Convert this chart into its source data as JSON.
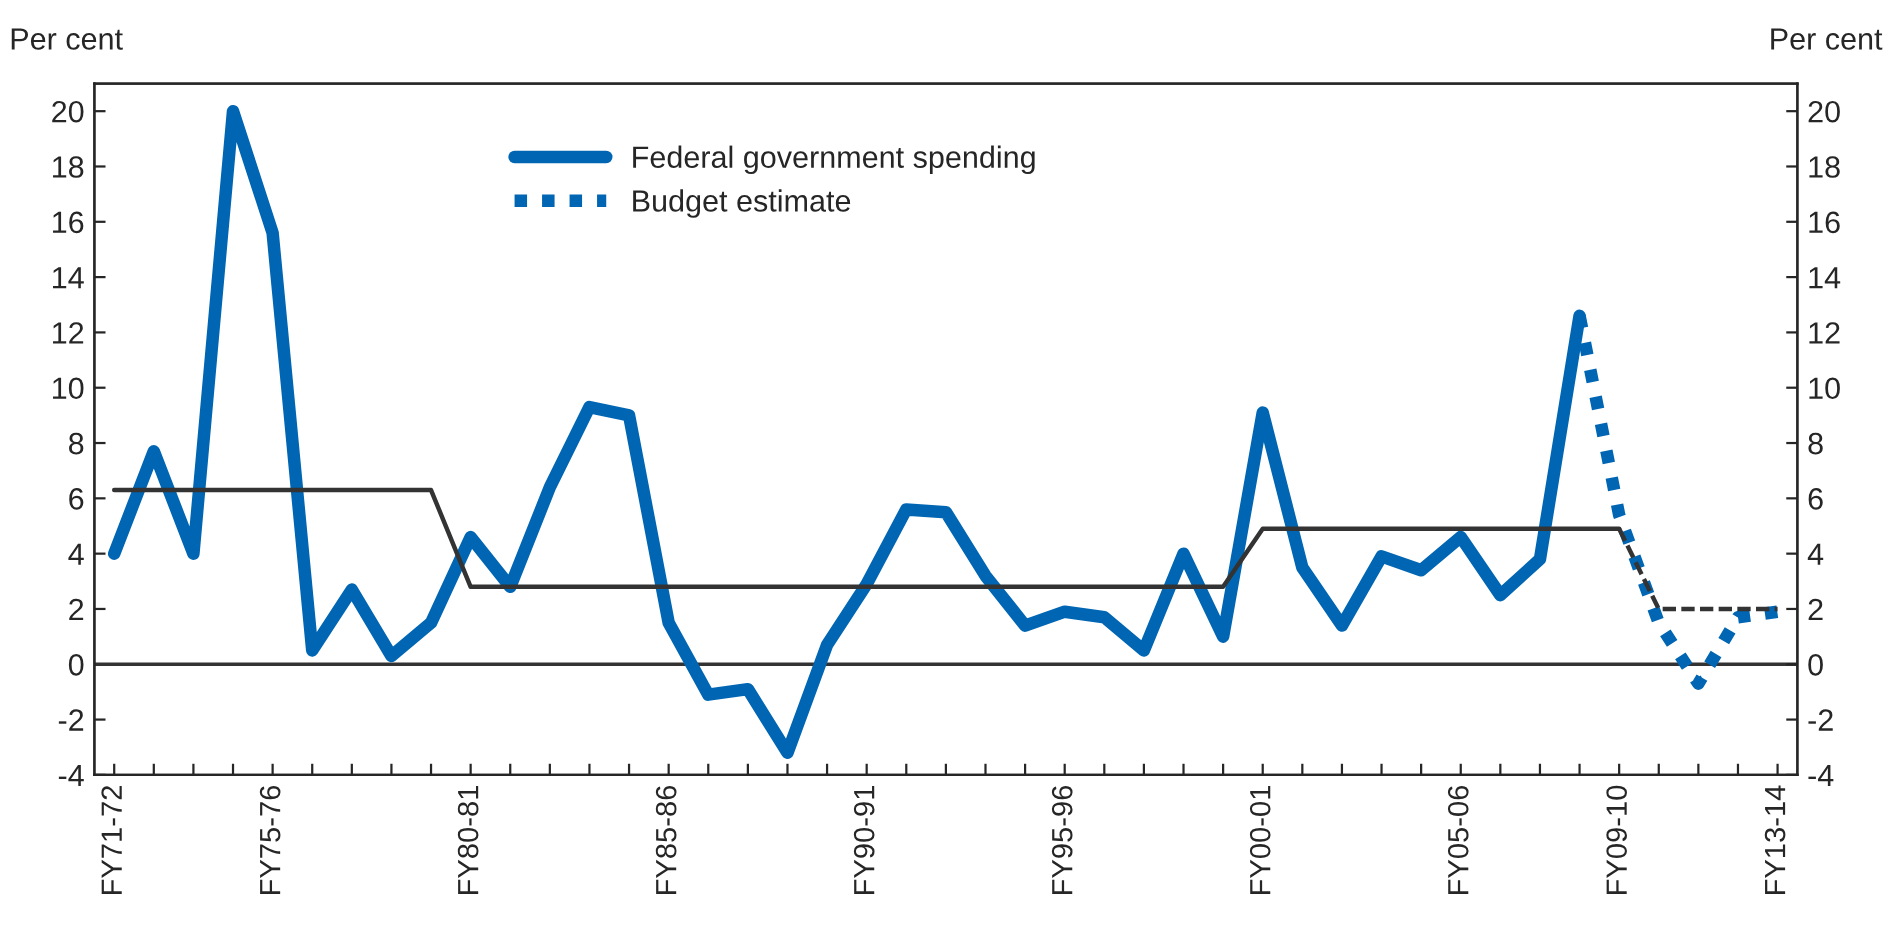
{
  "chart_data": {
    "type": "line",
    "ylabel": "Per cent",
    "y2label": "Per cent",
    "categories": [
      "FY71-72",
      null,
      null,
      null,
      "FY75-76",
      null,
      null,
      null,
      null,
      "FY80-81",
      null,
      null,
      null,
      null,
      "FY85-86",
      null,
      null,
      null,
      null,
      "FY90-91",
      null,
      null,
      null,
      null,
      "FY95-96",
      null,
      null,
      null,
      null,
      "FY00-01",
      null,
      null,
      null,
      null,
      "FY05-06",
      null,
      null,
      null,
      "FY09-10",
      null,
      null,
      null,
      "FY13-14"
    ],
    "series": [
      {
        "name": "Federal government spending",
        "color": "#0066b3",
        "line_style": "solid",
        "values": [
          4.0,
          7.7,
          4.0,
          20.0,
          15.6,
          0.5,
          2.7,
          0.3,
          1.5,
          4.6,
          2.8,
          6.4,
          9.3,
          9.0,
          1.5,
          -1.1,
          -0.9,
          -3.2,
          0.7,
          2.9,
          5.6,
          5.5,
          3.2,
          1.4,
          1.9,
          1.7,
          0.5,
          4.0,
          1.0,
          9.1,
          3.5,
          1.4,
          3.9,
          3.4,
          4.6,
          2.5,
          3.8,
          12.6,
          null,
          null,
          null,
          null,
          null
        ]
      },
      {
        "name": "Budget estimate",
        "color": "#0066b3",
        "line_style": "dotted",
        "values": [
          null,
          null,
          null,
          null,
          null,
          null,
          null,
          null,
          null,
          null,
          null,
          null,
          null,
          null,
          null,
          null,
          null,
          null,
          null,
          null,
          null,
          null,
          null,
          null,
          null,
          null,
          null,
          null,
          null,
          null,
          null,
          null,
          null,
          null,
          null,
          null,
          null,
          12.6,
          5.4,
          1.5,
          -0.7,
          1.7,
          1.9
        ]
      },
      {
        "color": "#333333",
        "line_style": "solid",
        "values": [
          6.3,
          6.3,
          6.3,
          6.3,
          6.3,
          6.3,
          6.3,
          6.3,
          6.3,
          2.8,
          2.8,
          2.8,
          2.8,
          2.8,
          2.8,
          2.8,
          2.8,
          2.8,
          2.8,
          2.8,
          2.8,
          2.8,
          2.8,
          2.8,
          2.8,
          2.8,
          2.8,
          2.8,
          2.8,
          4.9,
          4.9,
          4.9,
          4.9,
          4.9,
          4.9,
          4.9,
          4.9,
          4.9,
          4.9,
          null,
          null,
          null,
          null
        ]
      },
      {
        "color": "#333333",
        "line_style": "dashed",
        "values": [
          null,
          null,
          null,
          null,
          null,
          null,
          null,
          null,
          null,
          null,
          null,
          null,
          null,
          null,
          null,
          null,
          null,
          null,
          null,
          null,
          null,
          null,
          null,
          null,
          null,
          null,
          null,
          null,
          null,
          null,
          null,
          null,
          null,
          null,
          null,
          null,
          null,
          null,
          4.9,
          2.0,
          2.0,
          2.0,
          2.0
        ]
      }
    ],
    "ylim": [
      -4,
      21
    ],
    "yticks": [
      -4,
      -2,
      0,
      2,
      4,
      6,
      8,
      10,
      12,
      14,
      16,
      18,
      20
    ],
    "y2lim": [
      -4,
      21
    ],
    "y2ticks": [
      -4,
      -2,
      0,
      2,
      4,
      6,
      8,
      10,
      12,
      14,
      16,
      18,
      20
    ],
    "ref_lines": [
      {
        "axis": "y",
        "value": 0,
        "color": "#333333"
      }
    ],
    "grid": false,
    "legend": "top",
    "marker": "none"
  }
}
